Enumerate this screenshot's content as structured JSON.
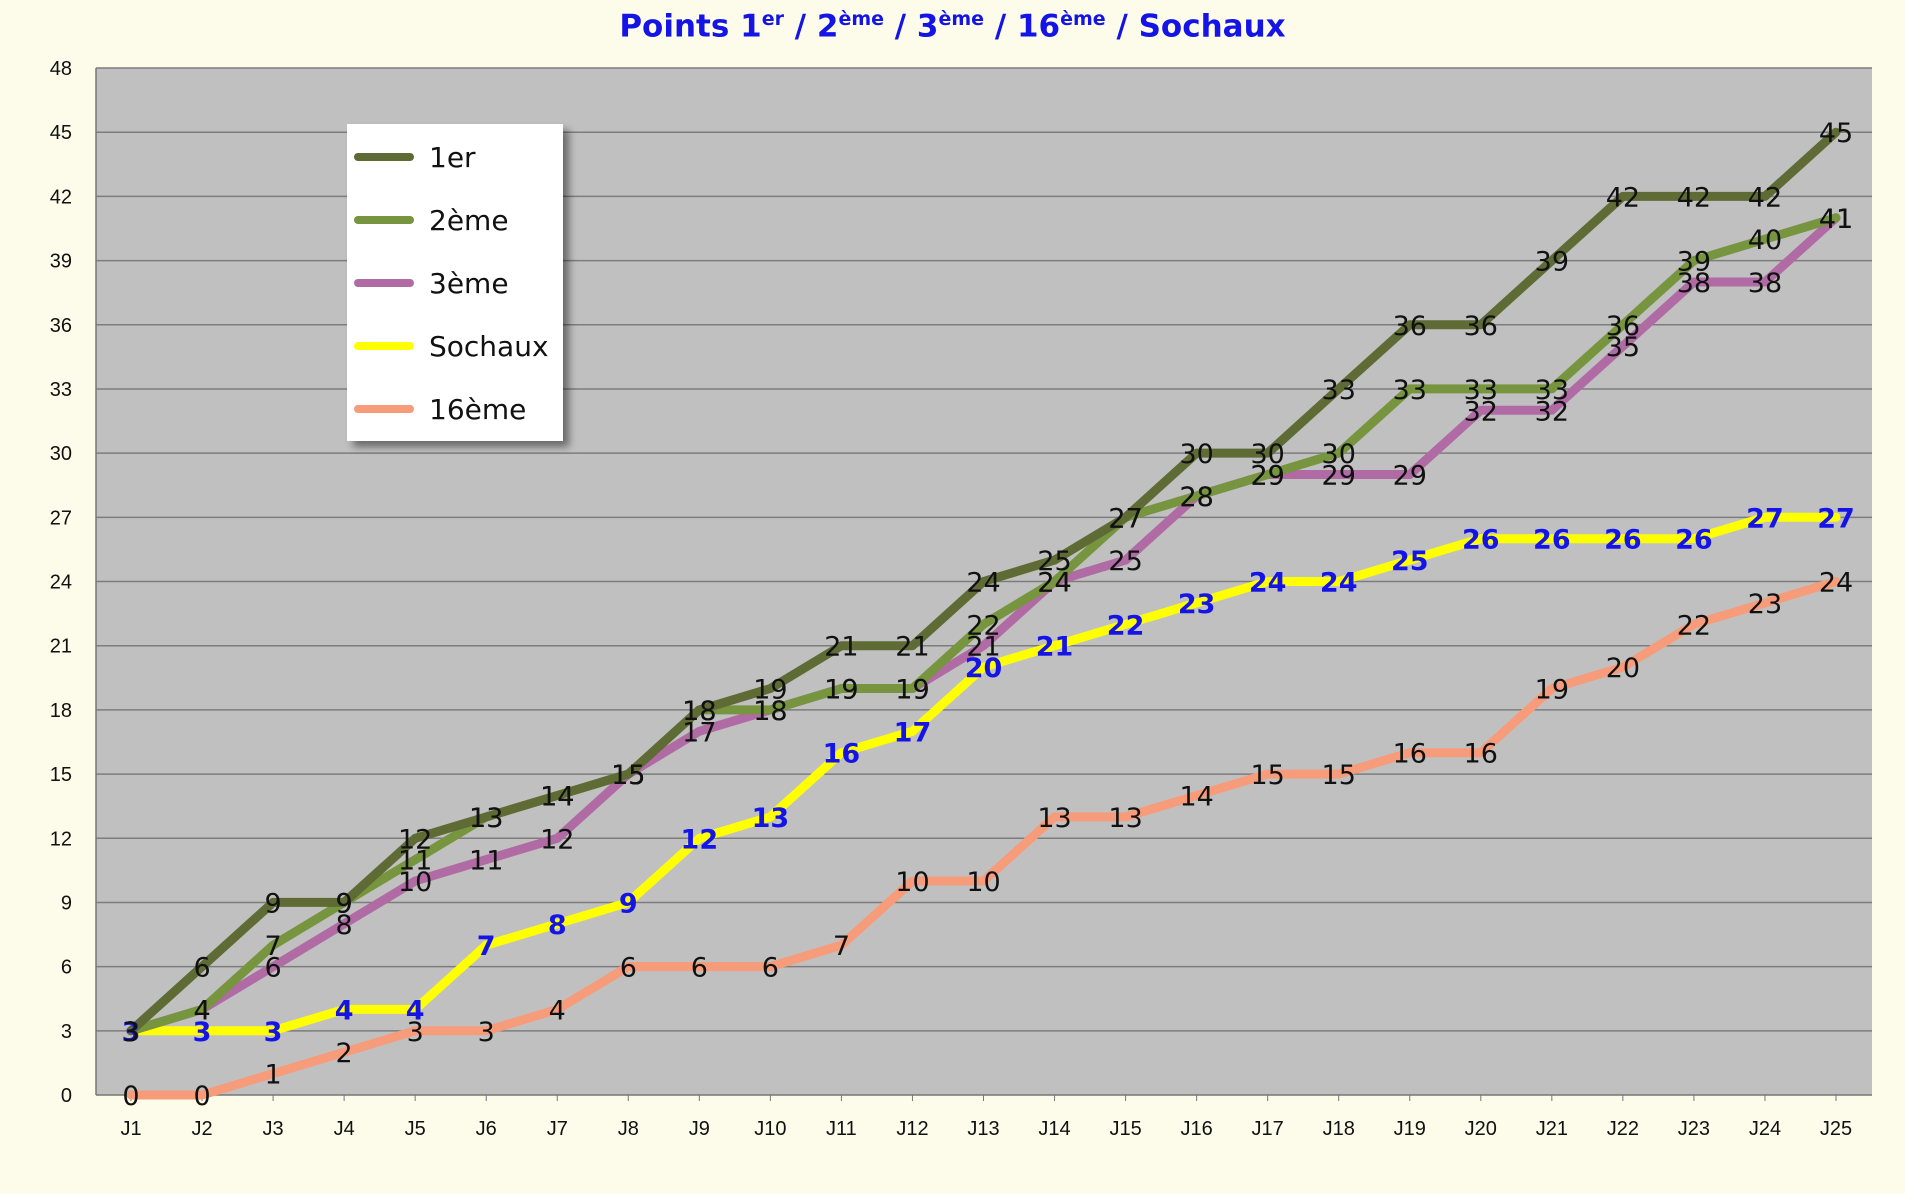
{
  "title": {
    "parts": [
      {
        "text": "Points 1",
        "sup": "er"
      },
      {
        "text": " / 2",
        "sup": "ème"
      },
      {
        "text": " / 3",
        "sup": "ème"
      },
      {
        "text": " / 16",
        "sup": "ème"
      },
      {
        "text": " / Sochaux",
        "sup": ""
      }
    ]
  },
  "chart_data": {
    "type": "line",
    "title": "Points 1er / 2ème / 3ème / 16ème / Sochaux",
    "xlabel": "",
    "ylabel": "",
    "x": [
      "J1",
      "J2",
      "J3",
      "J4",
      "J5",
      "J6",
      "J7",
      "J8",
      "J9",
      "J10",
      "J11",
      "J12",
      "J13",
      "J14",
      "J15",
      "J16",
      "J17",
      "J18",
      "J19",
      "J20",
      "J21",
      "J22",
      "J23",
      "J24",
      "J25"
    ],
    "ylim": [
      0,
      48
    ],
    "yticks": [
      0,
      3,
      6,
      9,
      12,
      15,
      18,
      21,
      24,
      27,
      30,
      33,
      36,
      39,
      42,
      45,
      48
    ],
    "grid": true,
    "legend_position": "top-left",
    "series": [
      {
        "name": "1er",
        "color": "#5e6b34",
        "label_color": "#111111",
        "values": [
          3,
          6,
          9,
          9,
          12,
          13,
          14,
          15,
          18,
          19,
          21,
          21,
          24,
          25,
          27,
          30,
          30,
          33,
          36,
          36,
          39,
          42,
          42,
          42,
          45
        ]
      },
      {
        "name": "2ème",
        "color": "#76953e",
        "label_color": "#111111",
        "values": [
          3,
          4,
          7,
          9,
          11,
          13,
          14,
          15,
          18,
          18,
          19,
          19,
          22,
          24,
          27,
          28,
          29,
          30,
          33,
          33,
          33,
          36,
          39,
          40,
          41
        ]
      },
      {
        "name": "3ème",
        "color": "#b06aa4",
        "label_color": "#111111",
        "values": [
          3,
          4,
          6,
          8,
          10,
          11,
          12,
          15,
          17,
          18,
          19,
          19,
          21,
          24,
          25,
          28,
          29,
          29,
          29,
          32,
          32,
          35,
          38,
          38,
          41
        ]
      },
      {
        "name": "Sochaux",
        "color": "#ffff00",
        "label_color": "#1414e6",
        "values": [
          3,
          3,
          3,
          4,
          4,
          7,
          8,
          9,
          12,
          13,
          16,
          17,
          20,
          21,
          22,
          23,
          24,
          24,
          25,
          26,
          26,
          26,
          26,
          27,
          27
        ]
      },
      {
        "name": "16ème",
        "color": "#f79c7a",
        "label_color": "#111111",
        "values": [
          0,
          0,
          1,
          2,
          3,
          3,
          4,
          6,
          6,
          6,
          7,
          10,
          10,
          13,
          13,
          14,
          15,
          15,
          16,
          16,
          19,
          20,
          22,
          23,
          24
        ]
      }
    ]
  }
}
